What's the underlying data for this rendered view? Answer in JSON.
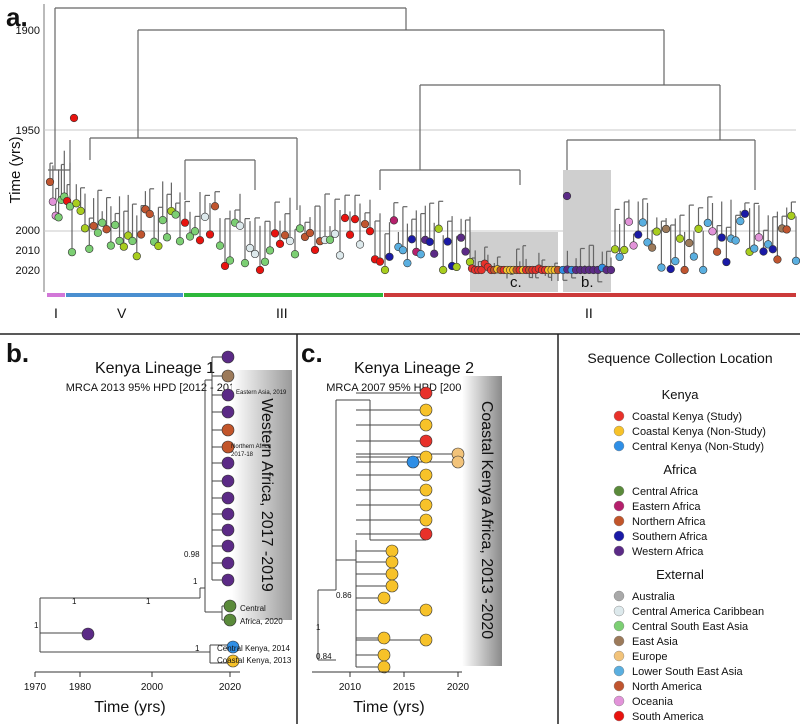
{
  "panel_a": {
    "letter": "a.",
    "y_axis_label": "Time (yrs)",
    "y_ticks": [
      "1900",
      "1950",
      "2000",
      "2010",
      "2020"
    ],
    "highlight_c": "c.",
    "highlight_b": "b.",
    "clades": [
      {
        "label": "I",
        "color": "#d277d8"
      },
      {
        "label": "V",
        "color": "#4a8fd0"
      },
      {
        "label": "III",
        "color": "#2db83a"
      },
      {
        "label": "II",
        "color": "#cc3a3a"
      }
    ]
  },
  "panel_b": {
    "letter": "b.",
    "title": "Kenya Lineage 1",
    "subtitle": "MRCA 2013 95% HPD [2012 - 2013]",
    "x_label": "Time (yrs)",
    "x_ticks": [
      "1970",
      "1980",
      "2000",
      "2020"
    ],
    "band_label": "Western Africa, 2017 -2019",
    "annotations": {
      "eastern_asia": "Eastern Asia, 2019",
      "northern_africa_1": "Northern Africa",
      "northern_africa_2": "2017-18",
      "central_1": "Central",
      "central_2": "Africa, 2020",
      "central_kenya": "Central Kenya, 2014",
      "coastal_kenya": "Coastal Kenya, 2013"
    },
    "supports": {
      "s098": "0.98",
      "s1a": "1",
      "s1b": "1",
      "s1c": "1",
      "s1d": "1",
      "s1e": "1"
    }
  },
  "panel_c": {
    "letter": "c.",
    "title": "Kenya Lineage 2",
    "subtitle": "MRCA 2007 95% HPD [2005- 2009]",
    "x_label": "Time (yrs)",
    "x_ticks": [
      "2010",
      "2015",
      "2020"
    ],
    "band_label": "Coastal Kenya Africa, 2013 -2020",
    "supports": {
      "s086": "0.86",
      "s1": "1",
      "s084": "0.84"
    }
  },
  "legend": {
    "title": "Sequence Collection Location",
    "groups": [
      {
        "heading": "Kenya",
        "items": [
          {
            "label": "Coastal Kenya (Study)",
            "color": "#e8312a"
          },
          {
            "label": "Coastal Kenya (Non-Study)",
            "color": "#f7c229"
          },
          {
            "label": "Central Kenya (Non-Study)",
            "color": "#2f8fe6"
          }
        ]
      },
      {
        "heading": "Africa",
        "items": [
          {
            "label": "Central Africa",
            "color": "#5a8a3a"
          },
          {
            "label": "Eastern Africa",
            "color": "#b5206c"
          },
          {
            "label": "Northern Africa",
            "color": "#c2552a"
          },
          {
            "label": "Southern Africa",
            "color": "#1a1aa6"
          },
          {
            "label": "Western Africa",
            "color": "#5b2a86"
          }
        ]
      },
      {
        "heading": "External",
        "items": [
          {
            "label": "Australia",
            "color": "#a9a9a9"
          },
          {
            "label": "Central America Caribbean",
            "color": "#dde9ec"
          },
          {
            "label": "Central South East Asia",
            "color": "#7ccf73"
          },
          {
            "label": "East Asia",
            "color": "#9c7a5a"
          },
          {
            "label": "Europe",
            "color": "#f2c37a"
          },
          {
            "label": "Lower South East Asia",
            "color": "#5aafe0"
          },
          {
            "label": "North America",
            "color": "#c0552f"
          },
          {
            "label": "Oceania",
            "color": "#e293d9"
          },
          {
            "label": "South America",
            "color": "#e8130f"
          },
          {
            "label": "Upper South East Asia",
            "color": "#a8cd1e"
          },
          {
            "label": "West Asia",
            "color": "#25a6a0"
          }
        ]
      }
    ]
  }
}
